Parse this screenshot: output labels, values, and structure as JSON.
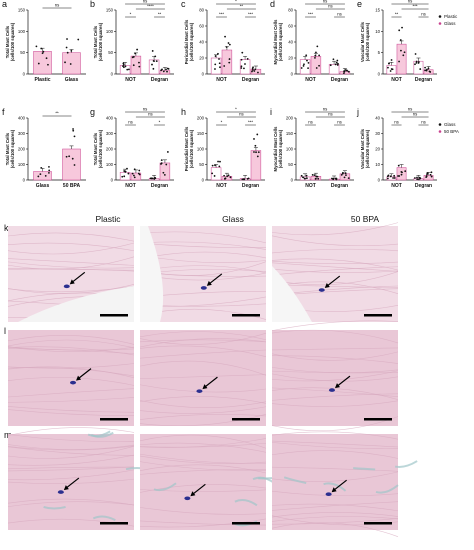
{
  "figure": {
    "panels": {
      "a": {
        "letter": "a",
        "ylabel": [
          "Total Mast Cells",
          "(cells/100 squares)"
        ],
        "yticks": [
          "0",
          "50",
          "100",
          "150"
        ],
        "categories": [
          "Plastic",
          "Glass"
        ],
        "sig": [
          "ns"
        ]
      },
      "b": {
        "letter": "b",
        "ylabel": [
          "Total Mast Cells",
          "(cells/100 squares)"
        ],
        "yticks": [
          "0",
          "50",
          "100",
          "150"
        ],
        "categories": [
          "NOT",
          "Degran"
        ],
        "sig": [
          "ns",
          "****",
          "*",
          "**"
        ]
      },
      "c": {
        "letter": "c",
        "ylabel": [
          "Pericardial Mast Cells",
          "(cells/100 squares)"
        ],
        "yticks": [
          "0",
          "20",
          "40",
          "60",
          "80"
        ],
        "categories": [
          "NOT",
          "Degran"
        ],
        "sig": [
          "*",
          "**",
          "***",
          "***"
        ]
      },
      "d": {
        "letter": "d",
        "ylabel": [
          "Myocardial Mast Cells",
          "(cells/100 squares)"
        ],
        "yticks": [
          "0",
          "20",
          "40",
          "60",
          "80"
        ],
        "categories": [
          "NOT",
          "Degran"
        ],
        "sig": [
          "ns",
          "ns",
          "***",
          "ns"
        ]
      },
      "e": {
        "letter": "e",
        "ylabel": [
          "Vascular Mast Cells",
          "(cells/100 squares)"
        ],
        "yticks": [
          "0",
          "5",
          "10",
          "15"
        ],
        "categories": [
          "NOT",
          "Degran"
        ],
        "sig": [
          "ns",
          "***",
          "**",
          "ns"
        ]
      },
      "f": {
        "letter": "f",
        "ylabel": [
          "Total Mast Cells",
          "(cells/100 squares)"
        ],
        "yticks": [
          "0",
          "100",
          "200",
          "300",
          "400"
        ],
        "categories": [
          "Glass",
          "50 BPA"
        ],
        "sig": [
          "**"
        ]
      },
      "g": {
        "letter": "g",
        "ylabel": [
          "Total Mast Cells",
          "(cells/100 squares)"
        ],
        "yticks": [
          "0",
          "100",
          "200",
          "300",
          "400"
        ],
        "categories": [
          "NOT",
          "Degran"
        ],
        "sig": [
          "ns",
          "ns",
          "ns",
          "*"
        ]
      },
      "h": {
        "letter": "h",
        "ylabel": [
          "Pericardial Mast Cells",
          "(cells/100 squares)"
        ],
        "yticks": [
          "0",
          "50",
          "100",
          "150",
          "200"
        ],
        "categories": [
          "NOT",
          "Degran"
        ],
        "sig": [
          "*",
          "ns",
          "*",
          "***"
        ]
      },
      "i": {
        "letter": "i",
        "ylabel": [
          "Myocardial Mast Cells",
          "(cells/100 squares)"
        ],
        "yticks": [
          "0",
          "50",
          "100",
          "150",
          "200"
        ],
        "categories": [
          "NOT",
          "Degran"
        ],
        "sig": [
          "ns",
          "ns",
          "ns",
          "ns"
        ]
      },
      "j": {
        "letter": "j",
        "ylabel": [
          "Vascular Mast Cells",
          "(cells/100 squares)"
        ],
        "yticks": [
          "0",
          "10",
          "20",
          "30",
          "40"
        ],
        "categories": [
          "NOT",
          "Degran"
        ],
        "sig": [
          "ns",
          "ns",
          "ns",
          "ns"
        ]
      }
    },
    "legends": [
      {
        "items": [
          "Plastic",
          "Glass"
        ]
      },
      {
        "items": [
          "Glass",
          "50 BPA"
        ]
      }
    ],
    "micro_panels": {
      "k": "k",
      "l": "l",
      "m": "m"
    },
    "column_headers": [
      "Plastic",
      "Glass",
      "50 BPA"
    ],
    "colors": {
      "bar_pink": "#f7c8dc",
      "bar_edge": "#c9418f",
      "tissue_pink": "#e9c7d6",
      "tissue_light": "#f1dbe5",
      "fiber": "#d7a9bf",
      "mast_cell": "#2b2f8f",
      "teal": "#9fc6c9"
    }
  },
  "chart_data": [
    {
      "type": "bar",
      "ylabel": "Total Mast Cells (cells/100 squares)",
      "categories": [
        "Plastic",
        "Glass"
      ],
      "values": [
        53,
        50
      ],
      "ylim": [
        0,
        150
      ]
    },
    {
      "type": "bar",
      "ylabel": "Total Mast Cells (cells/100 squares)",
      "categories": [
        "NOT",
        "Degran"
      ],
      "series": [
        {
          "name": "Plastic",
          "values": [
            20,
            33
          ]
        },
        {
          "name": "Glass",
          "values": [
            42,
            8
          ]
        }
      ],
      "ylim": [
        0,
        150
      ]
    },
    {
      "type": "bar",
      "ylabel": "Pericardial Mast Cells (cells/100 squares)",
      "categories": [
        "NOT",
        "Degran"
      ],
      "series": [
        {
          "name": "Plastic",
          "values": [
            20,
            18
          ]
        },
        {
          "name": "Glass",
          "values": [
            30,
            6
          ]
        }
      ],
      "ylim": [
        0,
        80
      ]
    },
    {
      "type": "bar",
      "ylabel": "Myocardial Mast Cells (cells/100 squares)",
      "categories": [
        "NOT",
        "Degran"
      ],
      "series": [
        {
          "name": "Plastic",
          "values": [
            18,
            12
          ]
        },
        {
          "name": "Glass",
          "values": [
            22,
            3
          ]
        }
      ],
      "ylim": [
        0,
        80
      ]
    },
    {
      "type": "bar",
      "ylabel": "Vascular Mast Cells (cells/100 squares)",
      "categories": [
        "NOT",
        "Degran"
      ],
      "series": [
        {
          "name": "Plastic",
          "values": [
            2,
            3
          ]
        },
        {
          "name": "Glass",
          "values": [
            7,
            1
          ]
        }
      ],
      "ylim": [
        0,
        15
      ]
    },
    {
      "type": "bar",
      "ylabel": "Total Mast Cells (cells/100 squares)",
      "categories": [
        "Glass",
        "50 BPA"
      ],
      "values": [
        55,
        200
      ],
      "ylim": [
        0,
        400
      ]
    },
    {
      "type": "bar",
      "ylabel": "Total Mast Cells (cells/100 squares)",
      "categories": [
        "NOT",
        "Degran"
      ],
      "series": [
        {
          "name": "Glass",
          "values": [
            50,
            10
          ]
        },
        {
          "name": "50 BPA",
          "values": [
            45,
            110
          ]
        }
      ],
      "ylim": [
        0,
        400
      ]
    },
    {
      "type": "bar",
      "ylabel": "Pericardial Mast Cells (cells/100 squares)",
      "categories": [
        "NOT",
        "Degran"
      ],
      "series": [
        {
          "name": "Glass",
          "values": [
            40,
            5
          ]
        },
        {
          "name": "50 BPA",
          "values": [
            12,
            95
          ]
        }
      ],
      "ylim": [
        0,
        200
      ]
    },
    {
      "type": "bar",
      "ylabel": "Myocardial Mast Cells (cells/100 squares)",
      "categories": [
        "NOT",
        "Degran"
      ],
      "series": [
        {
          "name": "Glass",
          "values": [
            10,
            3
          ]
        },
        {
          "name": "50 BPA",
          "values": [
            12,
            20
          ]
        }
      ],
      "ylim": [
        0,
        200
      ]
    },
    {
      "type": "bar",
      "ylabel": "Vascular Mast Cells (cells/100 squares)",
      "categories": [
        "NOT",
        "Degran"
      ],
      "series": [
        {
          "name": "Glass",
          "values": [
            2,
            1
          ]
        },
        {
          "name": "50 BPA",
          "values": [
            8,
            3
          ]
        }
      ],
      "ylim": [
        0,
        40
      ]
    }
  ]
}
